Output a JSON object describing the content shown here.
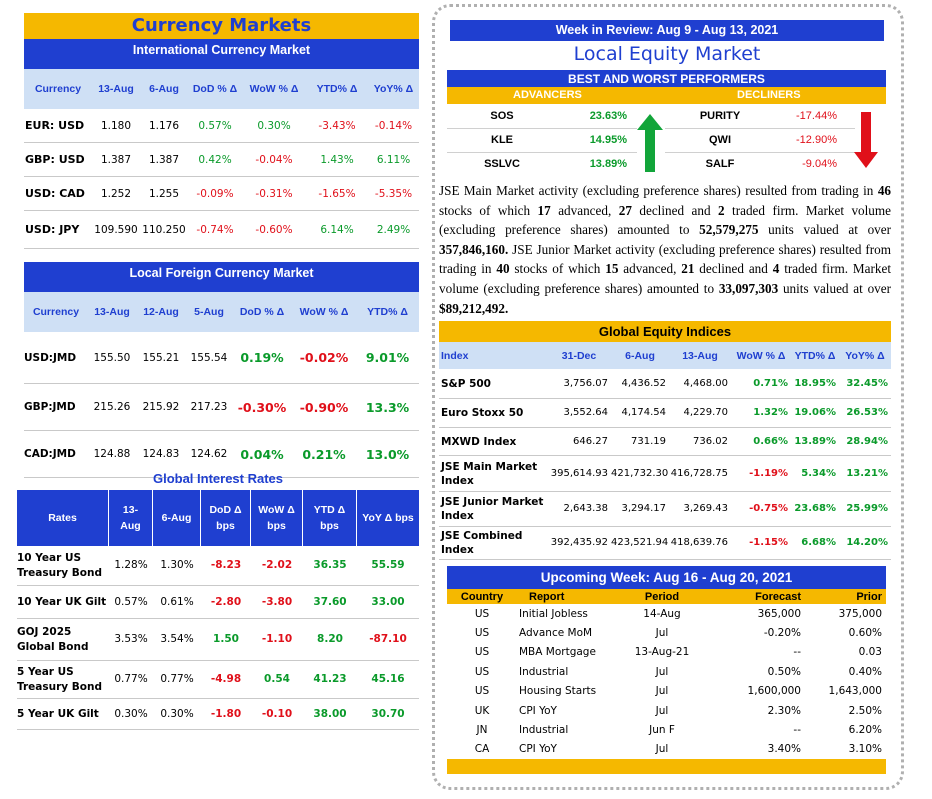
{
  "left": {
    "title": "Currency Markets",
    "intl": {
      "title": "International Currency Market",
      "headers": [
        "Currency",
        "13-Aug",
        "6-Aug",
        "DoD % Δ",
        "WoW % Δ",
        "YTD% Δ",
        "YoY% Δ"
      ],
      "rows": [
        [
          "EUR: USD",
          "1.180",
          "1.176",
          "0.57%",
          "0.30%",
          "-3.43%",
          "-0.14%"
        ],
        [
          "GBP: USD",
          "1.387",
          "1.387",
          "0.42%",
          "-0.04%",
          "1.43%",
          "6.11%"
        ],
        [
          "USD: CAD",
          "1.252",
          "1.255",
          "-0.09%",
          "-0.31%",
          "-1.65%",
          "-5.35%"
        ],
        [
          "USD: JPY",
          "109.590",
          "110.250",
          "-0.74%",
          "-0.60%",
          "6.14%",
          "2.49%"
        ]
      ]
    },
    "local": {
      "title": "Local Foreign Currency Market",
      "headers": [
        "Currency",
        "13-Aug",
        "12-Aug",
        "5-Aug",
        "DoD % Δ",
        "WoW % Δ",
        "YTD% Δ"
      ],
      "rows": [
        [
          "USD:JMD",
          "155.50",
          "155.21",
          "155.54",
          "0.19%",
          "-0.02%",
          "9.01%"
        ],
        [
          "GBP:JMD",
          "215.26",
          "215.92",
          "217.23",
          "-0.30%",
          "-0.90%",
          "13.3%"
        ],
        [
          "CAD:JMD",
          "124.88",
          "124.83",
          "124.62",
          "0.04%",
          "0.21%",
          "13.0%"
        ]
      ]
    },
    "rates": {
      "title": "Global Interest Rates",
      "headers": [
        "Rates",
        "13-Aug",
        "6-Aug",
        "DoD Δ bps",
        "WoW Δ bps",
        "YTD Δ bps",
        "YoY Δ bps"
      ],
      "rows": [
        [
          "10 Year US Treasury Bond",
          "1.28%",
          "1.30%",
          "-8.23",
          "-2.02",
          "36.35",
          "55.59"
        ],
        [
          "10 Year UK Gilt",
          "0.57%",
          "0.61%",
          "-2.80",
          "-3.80",
          "37.60",
          "33.00"
        ],
        [
          "GOJ 2025 Global Bond",
          "3.53%",
          "3.54%",
          "1.50",
          "-1.10",
          "8.20",
          "-87.10"
        ],
        [
          "5 Year US Treasury Bond",
          "0.77%",
          "0.77%",
          "-4.98",
          "0.54",
          "41.23",
          "45.16"
        ],
        [
          "5 Year UK Gilt",
          "0.30%",
          "0.30%",
          "-1.80",
          "-0.10",
          "38.00",
          "30.70"
        ]
      ]
    }
  },
  "right": {
    "week": "Week in Review:  Aug 9 - Aug 13, 2021",
    "title": "Local Equity Market",
    "bw_title": "BEST AND WORST PERFORMERS",
    "adv_label": "ADVANCERS",
    "dec_label": "DECLINERS",
    "advancers": [
      [
        "SOS",
        "23.63%"
      ],
      [
        "KLE",
        "14.95%"
      ],
      [
        "SSLVC",
        "13.89%"
      ]
    ],
    "decliners": [
      [
        "PURITY",
        "-17.44%"
      ],
      [
        "QWI",
        "-12.90%"
      ],
      [
        "SALF",
        "-9.04%"
      ]
    ],
    "para": [
      {
        "t": "JSE Main Market activity (excluding preference shares) resulted from trading in ",
        "b": false
      },
      {
        "t": "46",
        "b": true
      },
      {
        "t": " stocks of which ",
        "b": false
      },
      {
        "t": "17",
        "b": true
      },
      {
        "t": " advanced, ",
        "b": false
      },
      {
        "t": "27",
        "b": true
      },
      {
        "t": " declined and ",
        "b": false
      },
      {
        "t": "2",
        "b": true
      },
      {
        "t": " traded firm. Market volume (excluding preference shares) amounted to ",
        "b": false
      },
      {
        "t": "52,579,275",
        "b": true
      },
      {
        "t": " units valued at over ",
        "b": false
      },
      {
        "t": "357,846,160.",
        "b": true
      },
      {
        "t": " JSE Junior Market activity (excluding preference shares) resulted from trading in ",
        "b": false
      },
      {
        "t": "40",
        "b": true
      },
      {
        "t": " stocks of which ",
        "b": false
      },
      {
        "t": "15",
        "b": true
      },
      {
        "t": " advanced, ",
        "b": false
      },
      {
        "t": "21",
        "b": true
      },
      {
        "t": " declined and ",
        "b": false
      },
      {
        "t": "4",
        "b": true
      },
      {
        "t": " traded firm. Market volume (excluding preference shares) amounted to ",
        "b": false
      },
      {
        "t": "33,097,303",
        "b": true
      },
      {
        "t": " units valued at over ",
        "b": false
      },
      {
        "t": "$89,212,492.",
        "b": true
      }
    ],
    "indices": {
      "title": "Global Equity Indices",
      "headers": [
        "Index",
        "31-Dec",
        "6-Aug",
        "13-Aug",
        "WoW % Δ",
        "YTD% Δ",
        "YoY% Δ"
      ],
      "rows": [
        [
          "S&P 500",
          "3,756.07",
          "4,436.52",
          "4,468.00",
          "0.71%",
          "18.95%",
          "32.45%"
        ],
        [
          "Euro Stoxx 50",
          "3,552.64",
          "4,174.54",
          "4,229.70",
          "1.32%",
          "19.06%",
          "26.53%"
        ],
        [
          "MXWD  Index",
          "646.27",
          "731.19",
          "736.02",
          "0.66%",
          "13.89%",
          "28.94%"
        ],
        [
          "JSE Main Market Index",
          "395,614.93",
          "421,732.30",
          "416,728.75",
          "-1.19%",
          "5.34%",
          "13.21%"
        ],
        [
          "JSE Junior Market Index",
          "2,643.38",
          "3,294.17",
          "3,269.43",
          "-0.75%",
          "23.68%",
          "25.99%"
        ],
        [
          "JSE Combined Index",
          "392,435.92",
          "423,521.94",
          "418,639.76",
          "-1.15%",
          "6.68%",
          "14.20%"
        ]
      ]
    },
    "upcoming": {
      "title": "Upcoming Week:  Aug 16 - Aug 20, 2021",
      "headers": [
        "Country",
        "Report",
        "Period",
        "Forecast",
        "Prior"
      ],
      "rows": [
        [
          "US",
          "Initial Jobless",
          "14-Aug",
          "365,000",
          "375,000"
        ],
        [
          "US",
          "Advance MoM",
          "Jul",
          "-0.20%",
          "0.60%"
        ],
        [
          "US",
          "MBA Mortgage",
          "13-Aug-21",
          "--",
          "0.03"
        ],
        [
          "US",
          "Industrial",
          "Jul",
          "0.50%",
          "0.40%"
        ],
        [
          "US",
          "Housing Starts",
          "Jul",
          "1,600,000",
          "1,643,000"
        ],
        [
          "UK",
          "CPI YoY",
          "Jul",
          "2.30%",
          "2.50%"
        ],
        [
          "JN",
          "Industrial",
          "Jun F",
          "--",
          "6.20%"
        ],
        [
          "CA",
          "CPI YoY",
          "Jul",
          "3.40%",
          "3.10%"
        ]
      ]
    }
  }
}
